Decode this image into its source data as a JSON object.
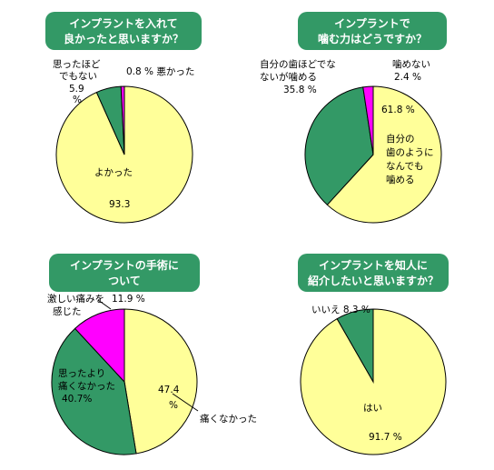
{
  "colors": {
    "yellow": "#FFFF99",
    "green": "#339966",
    "magenta": "#FF00FF",
    "title_bg": "#339966",
    "outline": "#000000"
  },
  "chart_data": [
    {
      "type": "pie",
      "title_lines": [
        "インプラントを入れて",
        "良かったと思いますか？"
      ],
      "slices": [
        {
          "name": "よかった",
          "value": 93.3,
          "color": "#FFFF99",
          "label_lines": [
            "よかった"
          ],
          "value_text": "93.3"
        },
        {
          "name": "思ったほどでもない",
          "value": 5.9,
          "color": "#339966",
          "label_lines": [
            "思ったほど",
            "でもない",
            "5.9",
            "%"
          ]
        },
        {
          "name": "悪かった",
          "value": 0.8,
          "color": "#FF00FF",
          "label_lines": [
            "0.8 % 悪かった"
          ]
        }
      ]
    },
    {
      "type": "pie",
      "title_lines": [
        "インプラントで",
        "噛む力はどうですか？"
      ],
      "slices": [
        {
          "name": "自分の歯のようになんでも噛める",
          "value": 61.8,
          "color": "#FFFF99",
          "label_lines": [
            "61.8 %",
            "自分の",
            "歯のように",
            "なんでも",
            "噛める"
          ]
        },
        {
          "name": "自分の歯ほどではないが噛める",
          "value": 35.8,
          "color": "#339966",
          "label_lines": [
            "自分の歯ほどでな",
            "ないが噛める",
            "35.8 %"
          ]
        },
        {
          "name": "噛めない",
          "value": 2.4,
          "color": "#FF00FF",
          "label_lines": [
            "噛めない",
            "2.4 %"
          ]
        }
      ]
    },
    {
      "type": "pie",
      "title_lines": [
        "インプラントの手術に",
        "ついて"
      ],
      "slices": [
        {
          "name": "痛くなかった",
          "value": 47.4,
          "color": "#FFFF99",
          "label_lines": [
            "47.4",
            "%",
            "痛くなかった"
          ]
        },
        {
          "name": "思ったより痛くなかった",
          "value": 40.7,
          "color": "#339966",
          "label_lines": [
            "思ったより",
            "痛くなかった",
            "40.7%"
          ]
        },
        {
          "name": "激しい痛みを感じた",
          "value": 11.9,
          "color": "#FF00FF",
          "label_lines": [
            "激しい痛みを",
            "感じた",
            "11.9 %"
          ]
        }
      ]
    },
    {
      "type": "pie",
      "title_lines": [
        "インプラントを知人に",
        "紹介したいと思いますか？"
      ],
      "slices": [
        {
          "name": "はい",
          "value": 91.7,
          "color": "#FFFF99",
          "label_lines": [
            "はい"
          ],
          "value_text": "91.7 %"
        },
        {
          "name": "いいえ",
          "value": 8.3,
          "color": "#339966",
          "label_lines": [
            "いいえ 8.3 %"
          ]
        }
      ]
    }
  ]
}
